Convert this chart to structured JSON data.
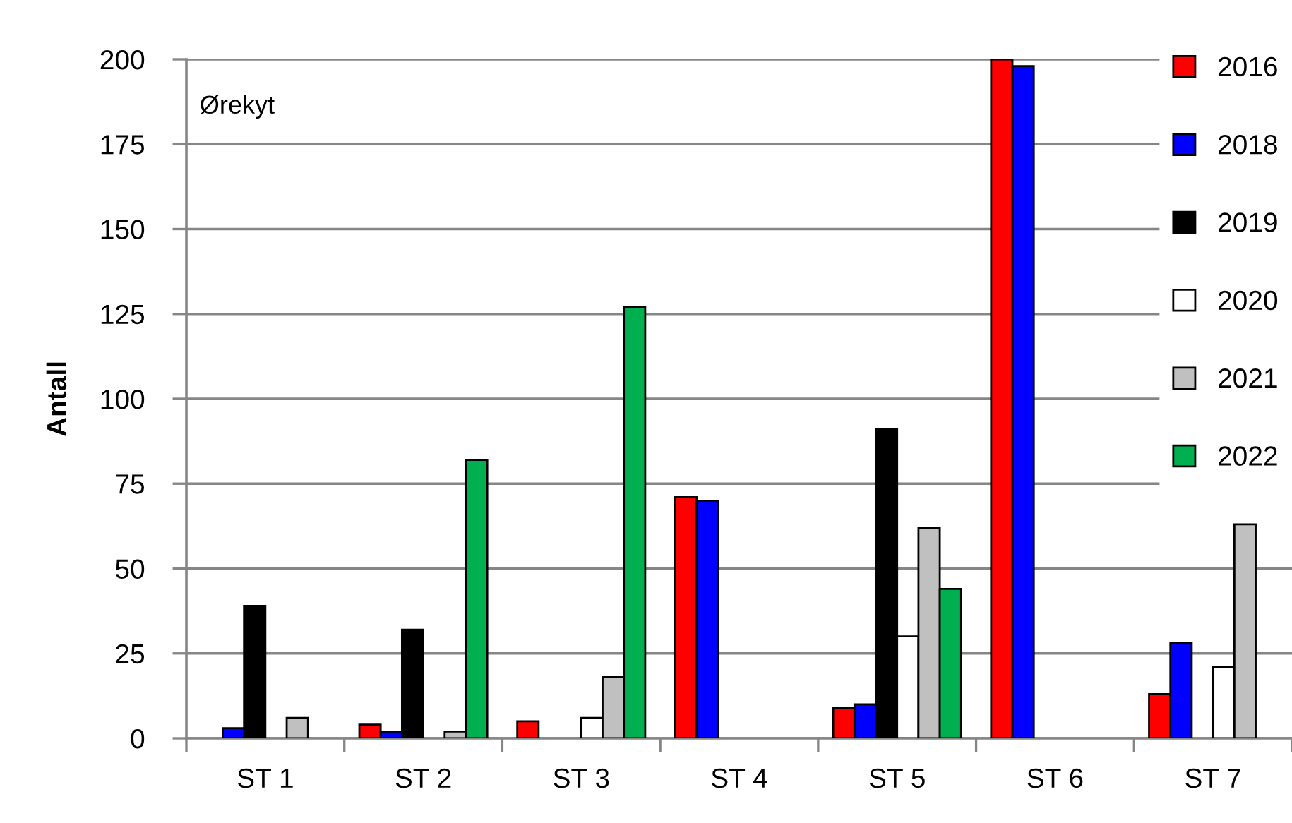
{
  "chart_data": {
    "type": "bar",
    "ylabel": "Antall",
    "annotations": [
      "Ørekyt"
    ],
    "categories": [
      "ST 1",
      "ST 2",
      "ST 3",
      "ST 4",
      "ST 5",
      "ST 6",
      "ST 7"
    ],
    "series": [
      {
        "name": "2016",
        "color": "#ff0000",
        "values": [
          null,
          4,
          5,
          71,
          9,
          200,
          13
        ]
      },
      {
        "name": "2018",
        "color": "#0000ff",
        "values": [
          3,
          2,
          null,
          70,
          10,
          198,
          28
        ]
      },
      {
        "name": "2019",
        "color": "#000000",
        "values": [
          39,
          32,
          null,
          null,
          91,
          null,
          null
        ]
      },
      {
        "name": "2020",
        "color": "#ffffff",
        "values": [
          null,
          null,
          6,
          null,
          30,
          null,
          21
        ]
      },
      {
        "name": "2021",
        "color": "#c0c0c0",
        "values": [
          6,
          2,
          18,
          null,
          62,
          null,
          63
        ]
      },
      {
        "name": "2022",
        "color": "#00b050",
        "values": [
          null,
          82,
          127,
          null,
          44,
          null,
          null
        ]
      }
    ],
    "ylim": [
      0,
      200
    ],
    "yticks": [
      0,
      25,
      50,
      75,
      100,
      125,
      150,
      175,
      200
    ],
    "grid": "y",
    "legend": "top right"
  }
}
